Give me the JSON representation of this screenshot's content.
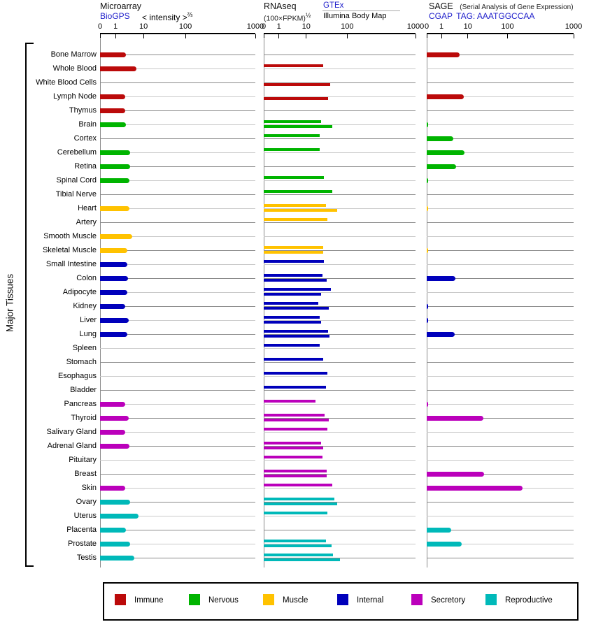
{
  "y_axis_label": "Major Tissues",
  "panels": {
    "microarray": {
      "title": "Microarray",
      "source_link": "BioGPS",
      "measure": "< intensity >",
      "measure_exponent": "⅔",
      "tick_labels": [
        "0",
        "1",
        "10",
        "100",
        "1000"
      ]
    },
    "rnaseq": {
      "title": "RNAseq",
      "measure": "(100×FPKM)",
      "measure_exponent": "½",
      "source_link": "GTEx",
      "source2": "Illumina Body Map",
      "tick_labels": [
        "0",
        "1",
        "10",
        "100",
        "1000"
      ]
    },
    "sage": {
      "title": "SAGE",
      "title_note": "(Serial Analysis of Gene Expression)",
      "source_link": "CGAP",
      "tag_label": "TAG: AAATGGCCAA",
      "tick_labels": [
        "0",
        "1",
        "10",
        "100",
        "1000"
      ]
    }
  },
  "group_colors": {
    "immune": "#bb0a0a",
    "nervous": "#00b400",
    "muscle": "#ffc200",
    "internal": "#0000bb",
    "secretory": "#bb00bb",
    "reproductive": "#00b9b9"
  },
  "legend_items": [
    {
      "label": "Immune",
      "group": "immune"
    },
    {
      "label": "Nervous",
      "group": "nervous"
    },
    {
      "label": "Muscle",
      "group": "muscle"
    },
    {
      "label": "Internal",
      "group": "internal"
    },
    {
      "label": "Secretory",
      "group": "secretory"
    },
    {
      "label": "Reproductive",
      "group": "reproductive"
    }
  ],
  "chart_data": {
    "type": "bar",
    "orientation": "horizontal",
    "grid": "per-row axis lines",
    "legend_position": "bottom",
    "x_scale": "compressed log-like scale, identical on all three panels",
    "tick_values": [
      0,
      1,
      10,
      100,
      1000
    ],
    "x_range": [
      0,
      1000
    ],
    "series_names": [
      "Microarray (BioGPS)",
      "RNAseq GTEx",
      "RNAseq Illumina Body Map",
      "SAGE (CGAP)"
    ],
    "rows": [
      {
        "tissue": "Bone Marrow",
        "group": "immune",
        "microarray": 2.4,
        "gtex": null,
        "illumina_body_map": null,
        "sage": 4.8
      },
      {
        "tissue": "Whole Blood",
        "group": "immune",
        "microarray": 5.6,
        "gtex": 26,
        "illumina_body_map": null,
        "sage": null
      },
      {
        "tissue": "White Blood Cells",
        "group": "immune",
        "microarray": null,
        "gtex": null,
        "illumina_body_map": 38,
        "sage": null
      },
      {
        "tissue": "Lymph Node",
        "group": "immune",
        "microarray": 2.2,
        "gtex": null,
        "illumina_body_map": 34,
        "sage": 7.2
      },
      {
        "tissue": "Thymus",
        "group": "immune",
        "microarray": 2.2,
        "gtex": null,
        "illumina_body_map": null,
        "sage": null
      },
      {
        "tissue": "Brain",
        "group": "nervous",
        "microarray": 2.3,
        "gtex": 23,
        "illumina_body_map": 43,
        "sage": 0.1
      },
      {
        "tissue": "Cortex",
        "group": "nervous",
        "microarray": null,
        "gtex": 21.5,
        "illumina_body_map": null,
        "sage": 2.8
      },
      {
        "tissue": "Cerebellum",
        "group": "nervous",
        "microarray": 3.3,
        "gtex": 21,
        "illumina_body_map": null,
        "sage": 7.6
      },
      {
        "tissue": "Retina",
        "group": "nervous",
        "microarray": 3.4,
        "gtex": null,
        "illumina_body_map": null,
        "sage": 3.5
      },
      {
        "tissue": "Spinal Cord",
        "group": "nervous",
        "microarray": 3.1,
        "gtex": 27,
        "illumina_body_map": null,
        "sage": 0.1
      },
      {
        "tissue": "Tibial Nerve",
        "group": "nervous",
        "microarray": null,
        "gtex": 43,
        "illumina_body_map": null,
        "sage": null
      },
      {
        "tissue": "Heart",
        "group": "muscle",
        "microarray": 3.1,
        "gtex": 30,
        "illumina_body_map": 58,
        "sage": 0.05
      },
      {
        "tissue": "Artery",
        "group": "muscle",
        "microarray": null,
        "gtex": 33,
        "illumina_body_map": null,
        "sage": null
      },
      {
        "tissue": "Smooth Muscle",
        "group": "muscle",
        "microarray": 3.9,
        "gtex": null,
        "illumina_body_map": null,
        "sage": null
      },
      {
        "tissue": "Skeletal Muscle",
        "group": "muscle",
        "microarray": 2.7,
        "gtex": 25.5,
        "illumina_body_map": 26,
        "sage": 0.05
      },
      {
        "tissue": "Small Intestine",
        "group": "internal",
        "microarray": 2.6,
        "gtex": 27,
        "illumina_body_map": null,
        "sage": null
      },
      {
        "tissue": "Colon",
        "group": "internal",
        "microarray": 2.75,
        "gtex": 24.5,
        "illumina_body_map": 32,
        "sage": 3.4
      },
      {
        "tissue": "Adipocyte",
        "group": "internal",
        "microarray": 2.7,
        "gtex": 40,
        "illumina_body_map": 23,
        "sage": null
      },
      {
        "tissue": "Kidney",
        "group": "internal",
        "microarray": 2.2,
        "gtex": 20,
        "illumina_body_map": 35.5,
        "sage": 0.05
      },
      {
        "tissue": "Liver",
        "group": "internal",
        "microarray": 2.9,
        "gtex": 21,
        "illumina_body_map": 23,
        "sage": 0.05
      },
      {
        "tissue": "Lung",
        "group": "internal",
        "microarray": 2.6,
        "gtex": 34,
        "illumina_body_map": 37,
        "sage": 3.2
      },
      {
        "tissue": "Spleen",
        "group": "internal",
        "microarray": null,
        "gtex": 21.5,
        "illumina_body_map": null,
        "sage": null
      },
      {
        "tissue": "Stomach",
        "group": "internal",
        "microarray": null,
        "gtex": 26,
        "illumina_body_map": null,
        "sage": null
      },
      {
        "tissue": "Esophagus",
        "group": "internal",
        "microarray": null,
        "gtex": 32.5,
        "illumina_body_map": null,
        "sage": null
      },
      {
        "tissue": "Bladder",
        "group": "internal",
        "microarray": null,
        "gtex": 30.5,
        "illumina_body_map": null,
        "sage": null
      },
      {
        "tissue": "Pancreas",
        "group": "secretory",
        "microarray": 2.2,
        "gtex": 17,
        "illumina_body_map": null,
        "sage": 0.05
      },
      {
        "tissue": "Thyroid",
        "group": "secretory",
        "microarray": 2.9,
        "gtex": 28.5,
        "illumina_body_map": 35.5,
        "sage": 24.5
      },
      {
        "tissue": "Salivary Gland",
        "group": "secretory",
        "microarray": 2.2,
        "gtex": 33,
        "illumina_body_map": null,
        "sage": null
      },
      {
        "tissue": "Adrenal Gland",
        "group": "secretory",
        "microarray": 3.2,
        "gtex": 23,
        "illumina_body_map": 25.5,
        "sage": null
      },
      {
        "tissue": "Pituitary",
        "group": "secretory",
        "microarray": null,
        "gtex": 24.5,
        "illumina_body_map": null,
        "sage": null
      },
      {
        "tissue": "Breast",
        "group": "secretory",
        "microarray": null,
        "gtex": 32,
        "illumina_body_map": 32,
        "sage": 26
      },
      {
        "tissue": "Skin",
        "group": "secretory",
        "microarray": 2.2,
        "gtex": 42.5,
        "illumina_body_map": null,
        "sage": 167
      },
      {
        "tissue": "Ovary",
        "group": "reproductive",
        "microarray": 3.35,
        "gtex": 48.5,
        "illumina_body_map": 57,
        "sage": null
      },
      {
        "tissue": "Uterus",
        "group": "reproductive",
        "microarray": 6.5,
        "gtex": 33,
        "illumina_body_map": null,
        "sage": null
      },
      {
        "tissue": "Placenta",
        "group": "reproductive",
        "microarray": 2.35,
        "gtex": null,
        "illumina_body_map": null,
        "sage": 2.4
      },
      {
        "tissue": "Prostate",
        "group": "reproductive",
        "microarray": 3.4,
        "gtex": 30,
        "illumina_body_map": 41,
        "sage": 5.8
      },
      {
        "tissue": "Testis",
        "group": "reproductive",
        "microarray": 4.8,
        "gtex": 44.5,
        "illumina_body_map": 66,
        "sage": null
      }
    ]
  }
}
